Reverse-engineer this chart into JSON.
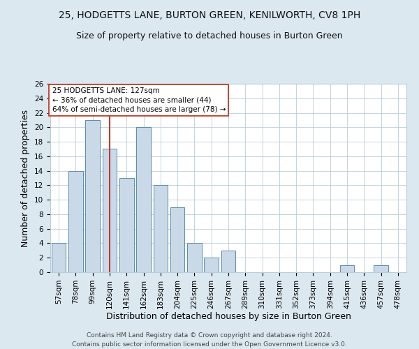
{
  "title": "25, HODGETTS LANE, BURTON GREEN, KENILWORTH, CV8 1PH",
  "subtitle": "Size of property relative to detached houses in Burton Green",
  "xlabel": "Distribution of detached houses by size in Burton Green",
  "ylabel": "Number of detached properties",
  "categories": [
    "57sqm",
    "78sqm",
    "99sqm",
    "120sqm",
    "141sqm",
    "162sqm",
    "183sqm",
    "204sqm",
    "225sqm",
    "246sqm",
    "267sqm",
    "289sqm",
    "310sqm",
    "331sqm",
    "352sqm",
    "373sqm",
    "394sqm",
    "415sqm",
    "436sqm",
    "457sqm",
    "478sqm"
  ],
  "values": [
    4,
    14,
    21,
    17,
    13,
    20,
    12,
    9,
    4,
    2,
    3,
    0,
    0,
    0,
    0,
    0,
    0,
    1,
    0,
    1,
    0
  ],
  "bar_color": "#c9d9e8",
  "bar_edge_color": "#5a8ab0",
  "highlight_index": 3,
  "highlight_line_color": "#c0392b",
  "annotation_line1": "25 HODGETTS LANE: 127sqm",
  "annotation_line2": "← 36% of detached houses are smaller (44)",
  "annotation_line3": "64% of semi-detached houses are larger (78) →",
  "ylim": [
    0,
    26
  ],
  "yticks": [
    0,
    2,
    4,
    6,
    8,
    10,
    12,
    14,
    16,
    18,
    20,
    22,
    24,
    26
  ],
  "footer": "Contains HM Land Registry data © Crown copyright and database right 2024.\nContains public sector information licensed under the Open Government Licence v3.0.",
  "bg_color": "#dce8f0",
  "plot_bg_color": "#ffffff",
  "title_fontsize": 10,
  "subtitle_fontsize": 9,
  "axis_label_fontsize": 9,
  "tick_fontsize": 7.5,
  "footer_fontsize": 6.5,
  "annotation_fontsize": 7.5,
  "grid_color": "#b8cdd8"
}
